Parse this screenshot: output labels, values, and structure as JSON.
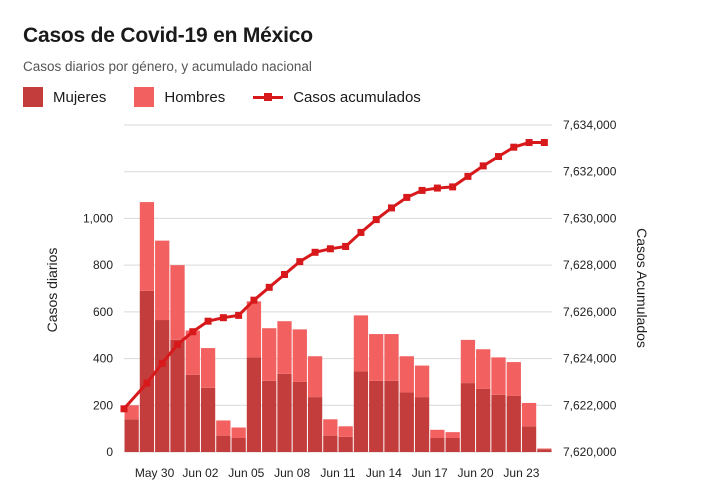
{
  "colors": {
    "mujeres": "#c43d3d",
    "hombres": "#f26060",
    "acumulados": "#d7191c",
    "grid": "#d9d9d9"
  },
  "legend": {
    "mujeres": "Mujeres",
    "hombres": "Hombres",
    "acumulados": "Casos acumulados"
  },
  "chart_data": {
    "type": "bar",
    "title": "Casos de Covid-19 en México",
    "subtitle": "Casos diarios por género, y acumulado nacional",
    "ylabel": "Casos diarios",
    "y2label": "Casos Acumulados",
    "ylim": [
      0,
      1400
    ],
    "y2lim": [
      7620000,
      7634000
    ],
    "yticks": [
      0,
      200,
      400,
      600,
      800,
      1000
    ],
    "yticklabels": [
      "0",
      "200",
      "400",
      "600",
      "800",
      "1,000"
    ],
    "y2ticks": [
      7620000,
      7622000,
      7624000,
      7626000,
      7628000,
      7630000,
      7632000,
      7634000
    ],
    "y2ticklabels": [
      "7,620,000",
      "7,622,000",
      "7,624,000",
      "7,626,000",
      "7,628,000",
      "7,630,000",
      "7,632,000",
      "7,634,000"
    ],
    "xticklabels": [
      {
        "index": 2,
        "label": "May 30"
      },
      {
        "index": 5,
        "label": "Jun 02"
      },
      {
        "index": 8,
        "label": "Jun 05"
      },
      {
        "index": 11,
        "label": "Jun 08"
      },
      {
        "index": 14,
        "label": "Jun 11"
      },
      {
        "index": 17,
        "label": "Jun 14"
      },
      {
        "index": 20,
        "label": "Jun 17"
      },
      {
        "index": 23,
        "label": "Jun 20"
      },
      {
        "index": 26,
        "label": "Jun 23"
      }
    ],
    "grid": "horizontal",
    "legend_position": "top-left",
    "series": [
      {
        "name": "Mujeres",
        "kind": "bar-stacked",
        "values": [
          140,
          690,
          565,
          480,
          330,
          275,
          70,
          60,
          405,
          305,
          335,
          300,
          235,
          70,
          65,
          345,
          305,
          305,
          255,
          235,
          60,
          60,
          295,
          270,
          245,
          240,
          110,
          12
        ]
      },
      {
        "name": "Hombres",
        "kind": "bar-stacked",
        "values": [
          60,
          380,
          340,
          320,
          190,
          170,
          65,
          45,
          240,
          225,
          225,
          225,
          175,
          70,
          45,
          240,
          200,
          200,
          155,
          135,
          35,
          25,
          185,
          170,
          160,
          145,
          100,
          3
        ]
      },
      {
        "name": "Casos acumulados",
        "kind": "line-right-axis",
        "values": [
          7621850,
          7622950,
          7623800,
          7624600,
          7625150,
          7625600,
          7625750,
          7625850,
          7626500,
          7627050,
          7627600,
          7628150,
          7628550,
          7628700,
          7628800,
          7629400,
          7629950,
          7630450,
          7630900,
          7631200,
          7631300,
          7631350,
          7631800,
          7632250,
          7632650,
          7633050,
          7633250,
          7633250
        ]
      }
    ]
  }
}
